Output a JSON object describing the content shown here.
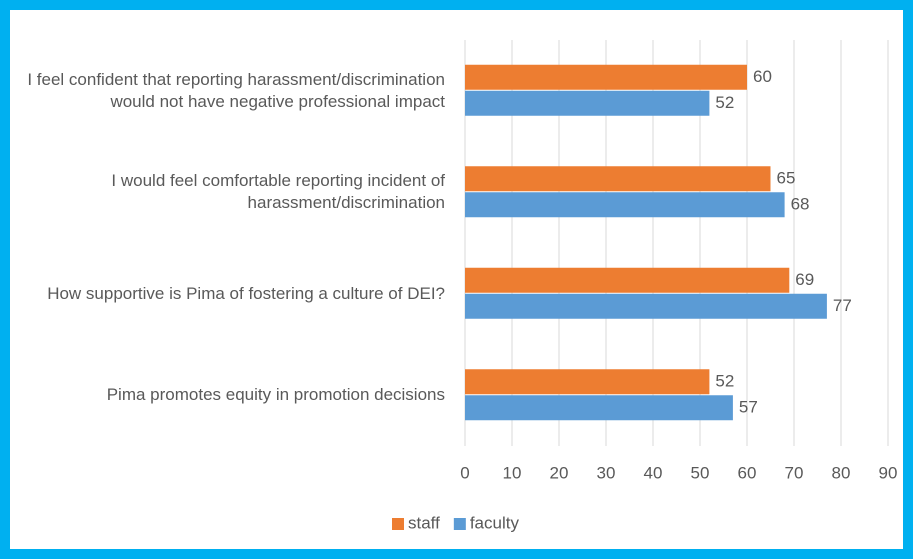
{
  "chart_data": {
    "type": "hbar",
    "categories": [
      "I feel confident that reporting harassment/discrimination would not have negative professional impact",
      "I would feel comfortable reporting incident of harassment/discrimination",
      "How supportive is Pima of fostering a culture of DEI?",
      "Pima promotes equity in promotion decisions"
    ],
    "series": [
      {
        "name": "staff",
        "color": "#ed7d31",
        "values": [
          60,
          65,
          69,
          52
        ]
      },
      {
        "name": "faculty",
        "color": "#5b9bd5",
        "values": [
          52,
          68,
          77,
          57
        ]
      }
    ],
    "xlim": [
      0,
      90
    ],
    "xticks": [
      0,
      10,
      20,
      30,
      40,
      50,
      60,
      70,
      80,
      90
    ],
    "grid": true,
    "legend": "bottom"
  }
}
